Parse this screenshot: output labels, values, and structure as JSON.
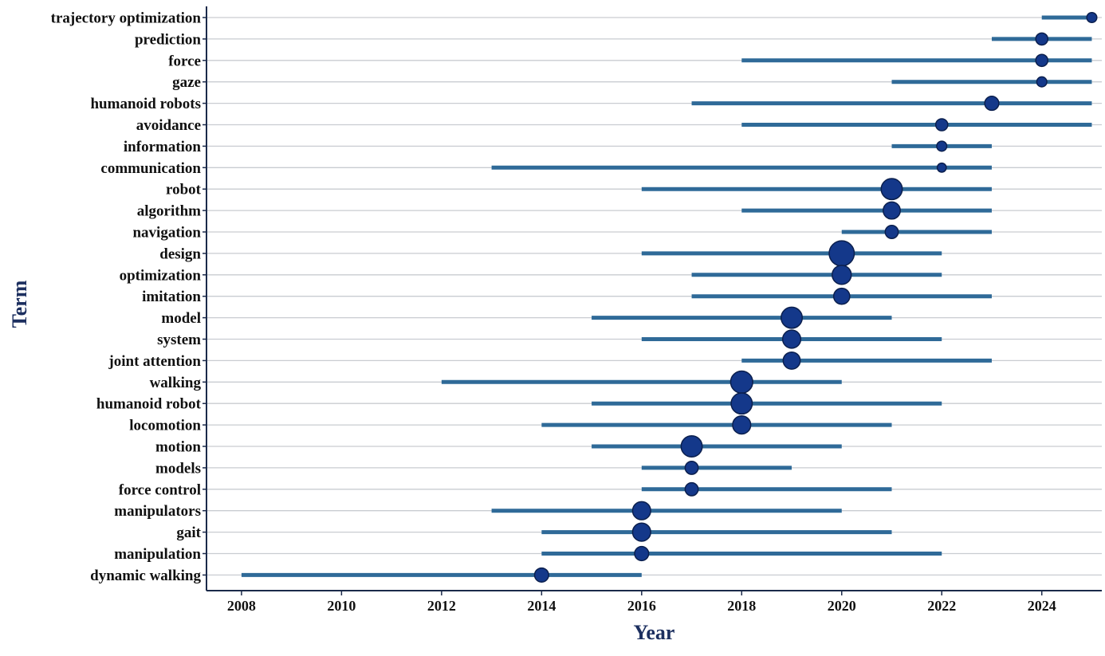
{
  "chart_data": {
    "type": "scatter",
    "xlabel": "Year",
    "ylabel": "Term",
    "xlim": [
      2007.3,
      2025.2
    ],
    "xticks": [
      2008,
      2010,
      2012,
      2014,
      2016,
      2018,
      2020,
      2022,
      2024
    ],
    "grid": "horizontal",
    "colors": {
      "bar": "#2f6a98",
      "point": "#14388a",
      "point_stroke": "#0b1f4d",
      "grid": "#c9ccd1",
      "axis": "#1b2a4a",
      "title": "#1c2f5f"
    },
    "terms": [
      {
        "term": "trajectory optimization",
        "start": 2024,
        "end": 2025,
        "peak": 2025,
        "size": 1.0
      },
      {
        "term": "prediction",
        "start": 2023,
        "end": 2025,
        "peak": 2024,
        "size": 1.2
      },
      {
        "term": "force",
        "start": 2018,
        "end": 2025,
        "peak": 2024,
        "size": 1.2
      },
      {
        "term": "gaze",
        "start": 2021,
        "end": 2025,
        "peak": 2024,
        "size": 1.0
      },
      {
        "term": "humanoid robots",
        "start": 2017,
        "end": 2025,
        "peak": 2023,
        "size": 1.4
      },
      {
        "term": "avoidance",
        "start": 2018,
        "end": 2025,
        "peak": 2022,
        "size": 1.2
      },
      {
        "term": "information",
        "start": 2021,
        "end": 2023,
        "peak": 2022,
        "size": 1.0
      },
      {
        "term": "communication",
        "start": 2013,
        "end": 2023,
        "peak": 2022,
        "size": 0.9
      },
      {
        "term": "robot",
        "start": 2016,
        "end": 2023,
        "peak": 2021,
        "size": 2.1
      },
      {
        "term": "algorithm",
        "start": 2018,
        "end": 2023,
        "peak": 2021,
        "size": 1.7
      },
      {
        "term": "navigation",
        "start": 2020,
        "end": 2023,
        "peak": 2021,
        "size": 1.3
      },
      {
        "term": "design",
        "start": 2016,
        "end": 2022,
        "peak": 2020,
        "size": 2.5
      },
      {
        "term": "optimization",
        "start": 2017,
        "end": 2022,
        "peak": 2020,
        "size": 1.9
      },
      {
        "term": "imitation",
        "start": 2017,
        "end": 2023,
        "peak": 2020,
        "size": 1.6
      },
      {
        "term": "model",
        "start": 2015,
        "end": 2021,
        "peak": 2019,
        "size": 2.1
      },
      {
        "term": "system",
        "start": 2016,
        "end": 2022,
        "peak": 2019,
        "size": 1.8
      },
      {
        "term": "joint attention",
        "start": 2018,
        "end": 2023,
        "peak": 2019,
        "size": 1.7
      },
      {
        "term": "walking",
        "start": 2012,
        "end": 2020,
        "peak": 2018,
        "size": 2.2
      },
      {
        "term": "humanoid robot",
        "start": 2015,
        "end": 2022,
        "peak": 2018,
        "size": 2.1
      },
      {
        "term": "locomotion",
        "start": 2014,
        "end": 2021,
        "peak": 2018,
        "size": 1.8
      },
      {
        "term": "motion",
        "start": 2015,
        "end": 2020,
        "peak": 2017,
        "size": 2.1
      },
      {
        "term": "models",
        "start": 2016,
        "end": 2019,
        "peak": 2017,
        "size": 1.3
      },
      {
        "term": "force control",
        "start": 2016,
        "end": 2021,
        "peak": 2017,
        "size": 1.3
      },
      {
        "term": "manipulators",
        "start": 2013,
        "end": 2020,
        "peak": 2016,
        "size": 1.8
      },
      {
        "term": "gait",
        "start": 2014,
        "end": 2021,
        "peak": 2016,
        "size": 1.8
      },
      {
        "term": "manipulation",
        "start": 2014,
        "end": 2022,
        "peak": 2016,
        "size": 1.4
      },
      {
        "term": "dynamic walking",
        "start": 2008,
        "end": 2016,
        "peak": 2014,
        "size": 1.4
      }
    ]
  }
}
